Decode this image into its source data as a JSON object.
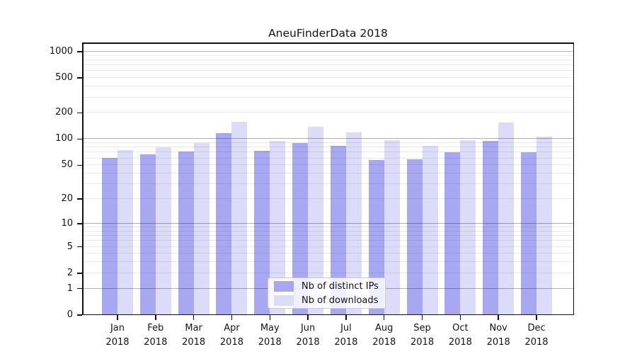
{
  "title": "AneuFinderData 2018",
  "legend": {
    "items": [
      {
        "label": "Nb of distinct IPs",
        "color": "#a8a8f2"
      },
      {
        "label": "Nb of downloads",
        "color": "#dcdcf8"
      }
    ]
  },
  "y_axis": {
    "tick_labels": [
      "0",
      "1",
      "2",
      "5",
      "10",
      "20",
      "50",
      "100",
      "200",
      "500",
      "1000"
    ]
  },
  "x_axis": {
    "tick_labels": [
      "Jan 2018",
      "Feb 2018",
      "Mar 2018",
      "Apr 2018",
      "May 2018",
      "Jun 2018",
      "Jul 2018",
      "Aug 2018",
      "Sep 2018",
      "Oct 2018",
      "Nov 2018",
      "Dec 2018"
    ]
  },
  "chart_data": {
    "type": "bar",
    "title": "AneuFinderData 2018",
    "xlabel": "",
    "ylabel": "",
    "yscale": "log1p",
    "ylim": [
      0,
      1270
    ],
    "yticks": [
      0,
      1,
      2,
      5,
      10,
      20,
      50,
      100,
      200,
      500,
      1000
    ],
    "grid": "horizontal major at 1,10,100,1000; minor at 2-9,20-90,200-900",
    "legend_position": "lower center",
    "categories": [
      "Jan 2018",
      "Feb 2018",
      "Mar 2018",
      "Apr 2018",
      "May 2018",
      "Jun 2018",
      "Jul 2018",
      "Aug 2018",
      "Sep 2018",
      "Oct 2018",
      "Nov 2018",
      "Dec 2018"
    ],
    "series": [
      {
        "name": "Nb of distinct IPs",
        "color": "#a8a8f2",
        "values": [
          61,
          67,
          72,
          118,
          73,
          90,
          84,
          57,
          58,
          71,
          95,
          71
        ]
      },
      {
        "name": "Nb of downloads",
        "color": "#dcdcf8",
        "values": [
          75,
          80,
          90,
          158,
          95,
          139,
          119,
          97,
          84,
          97,
          155,
          107
        ]
      }
    ]
  }
}
